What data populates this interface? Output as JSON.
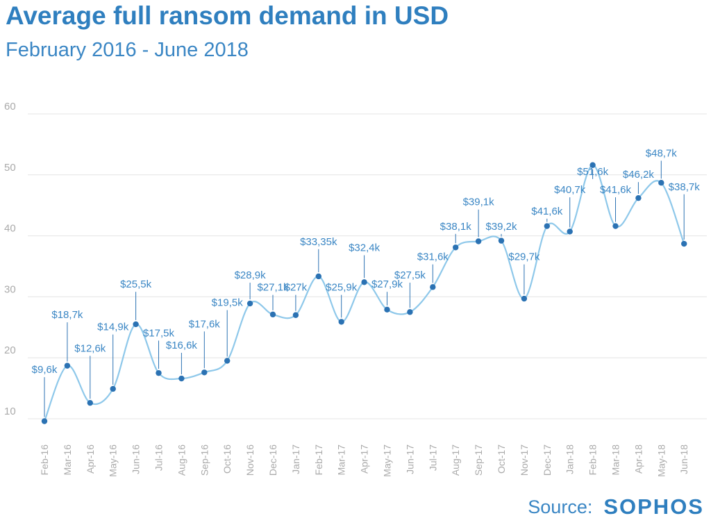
{
  "chart_data": {
    "type": "line",
    "title": "Average full ransom demand in USD",
    "subtitle": "February 2016 - June 2018",
    "xlabel": "",
    "ylabel": "",
    "ylim": [
      5,
      65
    ],
    "yticks": [
      10,
      20,
      30,
      40,
      50,
      60
    ],
    "grid": true,
    "categories": [
      "Feb-16",
      "Mar-16",
      "Apr-16",
      "May-16",
      "Jun-16",
      "Jul-16",
      "Aug-16",
      "Sep-16",
      "Oct-16",
      "Nov-16",
      "Dec-16",
      "Jan-17",
      "Feb-17",
      "Mar-17",
      "Apr-17",
      "May-17",
      "Jun-17",
      "Jul-17",
      "Aug-17",
      "Sep-17",
      "Oct-17",
      "Nov-17",
      "Dec-17",
      "Jan-18",
      "Feb-18",
      "Mar-18",
      "Apr-18",
      "May-18",
      "Jun-18"
    ],
    "values": [
      9.6,
      18.7,
      12.6,
      14.9,
      25.5,
      17.5,
      16.6,
      17.6,
      19.5,
      28.9,
      27.1,
      27.0,
      33.35,
      25.9,
      32.4,
      27.9,
      27.5,
      31.6,
      38.1,
      39.1,
      39.2,
      29.7,
      41.6,
      40.7,
      51.6,
      41.6,
      46.2,
      48.7,
      38.7
    ],
    "labels": [
      "$9,6k",
      "$18,7k",
      "$12,6k",
      "$14,9k",
      "$25,5k",
      "$17,5k",
      "$16,6k",
      "$17,6k",
      "$19,5k",
      "$28,9k",
      "$27,1k",
      "$27k",
      "$33,35k",
      "$25,9k",
      "$32,4k",
      "$27,9k",
      "$27,5k",
      "$31,6k",
      "$38,1k",
      "$39,1k",
      "$39,2k",
      "$29,7k",
      "$41,6k",
      "$40,7k",
      "$51,6k",
      "$41,6k",
      "$46,2k",
      "$48,7k",
      "$38,7k"
    ],
    "label_values": [
      17.5,
      26.5,
      21,
      24.5,
      31.5,
      23.5,
      21.5,
      25,
      28.5,
      33,
      31,
      31,
      38.5,
      31,
      37.5,
      31.5,
      33,
      36,
      41,
      45,
      41,
      36,
      43.5,
      47,
      50,
      47,
      49.5,
      53,
      47.5
    ],
    "colors": {
      "line": "#8ec8ea",
      "marker": "#2b72b3",
      "label": "#3a86c4",
      "grid": "#e4e4e4",
      "tick": "#aaaaaa"
    }
  },
  "source": {
    "label": "Source:",
    "brand": "SOPHOS"
  }
}
